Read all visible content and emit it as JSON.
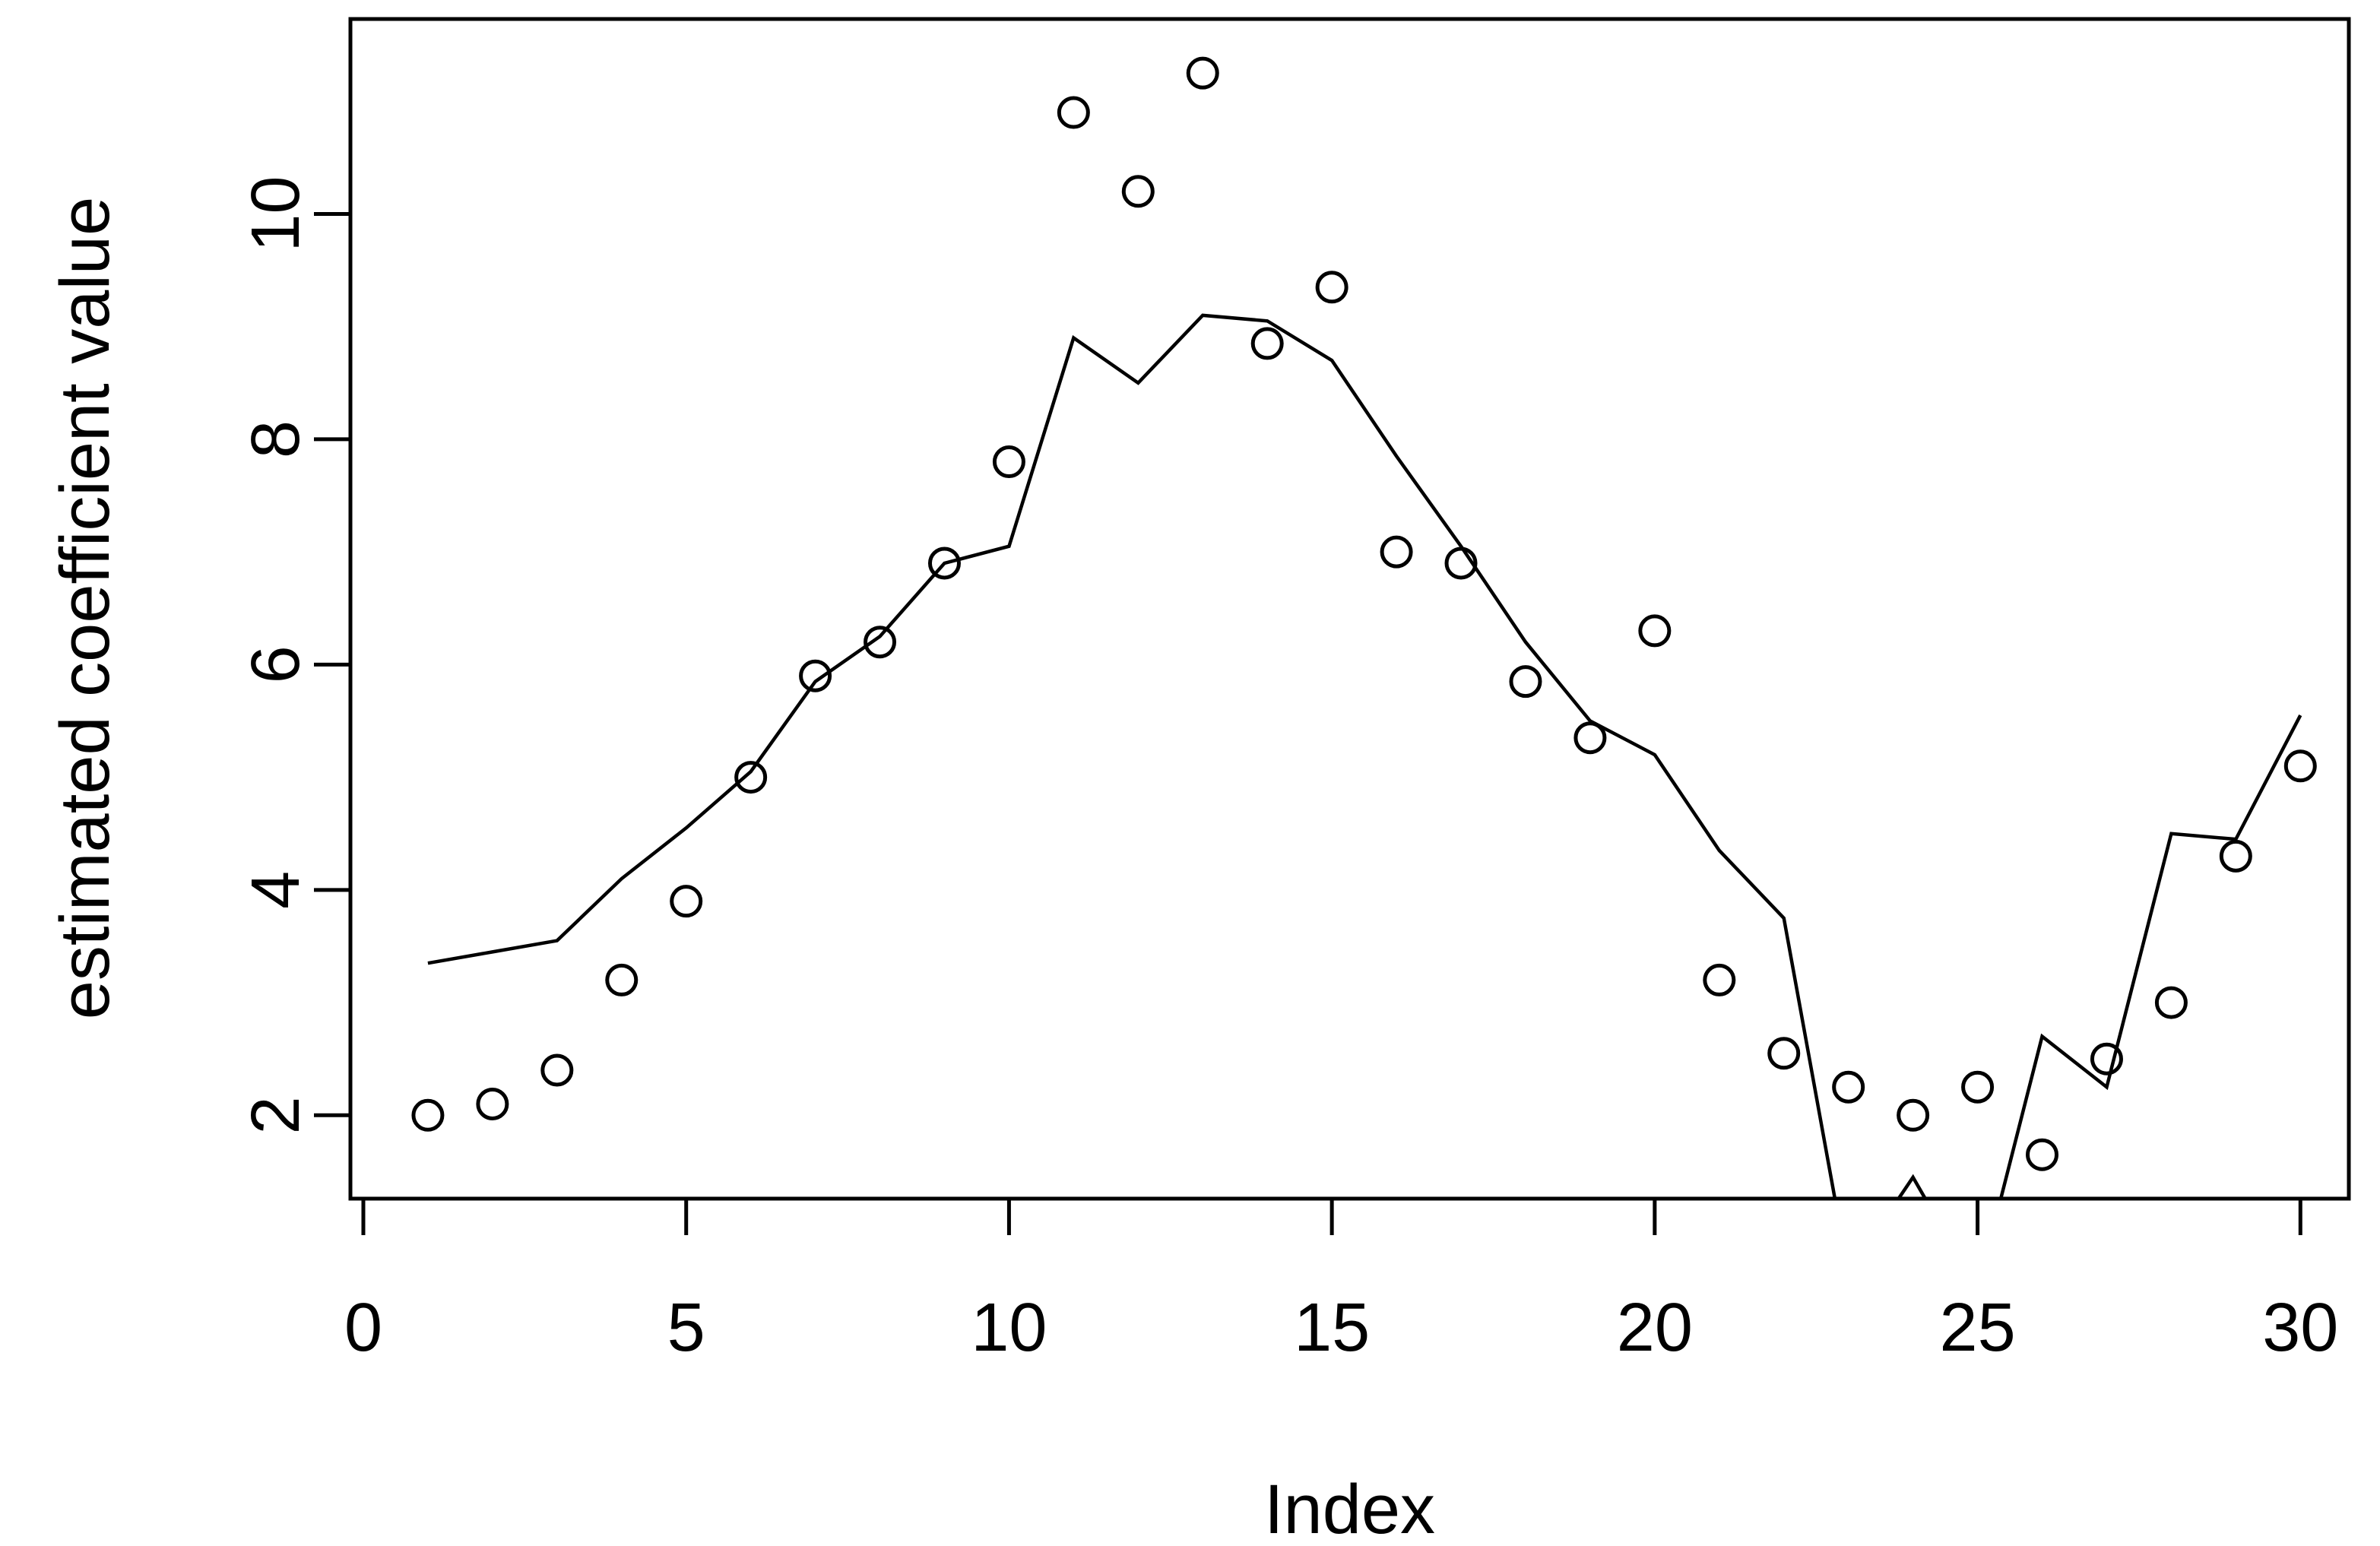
{
  "figure": {
    "background": "#ffffff",
    "foreground": "#000000"
  },
  "chart_data": {
    "type": "scatter",
    "title": "",
    "xlabel": "Index",
    "ylabel": "estimated coefficient value",
    "x": [
      1,
      2,
      3,
      4,
      5,
      6,
      7,
      8,
      9,
      10,
      11,
      12,
      13,
      14,
      15,
      16,
      17,
      18,
      19,
      20,
      21,
      22,
      23,
      24,
      25,
      26,
      27,
      28,
      29,
      30
    ],
    "series": [
      {
        "name": "observed-points",
        "render": "open-circle-markers",
        "values": [
          2.0,
          2.1,
          2.4,
          3.2,
          3.9,
          5.0,
          5.9,
          6.2,
          6.9,
          7.8,
          10.9,
          10.2,
          11.25,
          8.85,
          9.35,
          7.0,
          6.9,
          5.85,
          5.35,
          6.3,
          3.2,
          2.55,
          2.25,
          2.0,
          2.25,
          1.65,
          2.5,
          3.0,
          4.3,
          5.1
        ]
      },
      {
        "name": "estimate-line",
        "render": "solid-line",
        "values": [
          3.35,
          3.45,
          3.55,
          4.1,
          4.55,
          5.05,
          5.85,
          6.25,
          6.9,
          7.05,
          8.9,
          8.5,
          9.1,
          9.05,
          8.7,
          7.85,
          7.05,
          6.2,
          5.5,
          5.2,
          4.35,
          3.75,
          0.6,
          1.45,
          0.45,
          2.7,
          2.25,
          4.5,
          4.45,
          5.55
        ]
      }
    ],
    "x_ticks": [
      0,
      5,
      10,
      15,
      20,
      25,
      30
    ],
    "y_ticks": [
      2,
      4,
      6,
      8,
      10
    ],
    "xlim": [
      -0.2,
      30.75
    ],
    "ylim": [
      1.26,
      11.73
    ],
    "grid": false,
    "legend": "none",
    "notes": "line is clipped by the plot box below y-axis minimum near x=23 and x=25; small spike re-enters at x=24"
  }
}
